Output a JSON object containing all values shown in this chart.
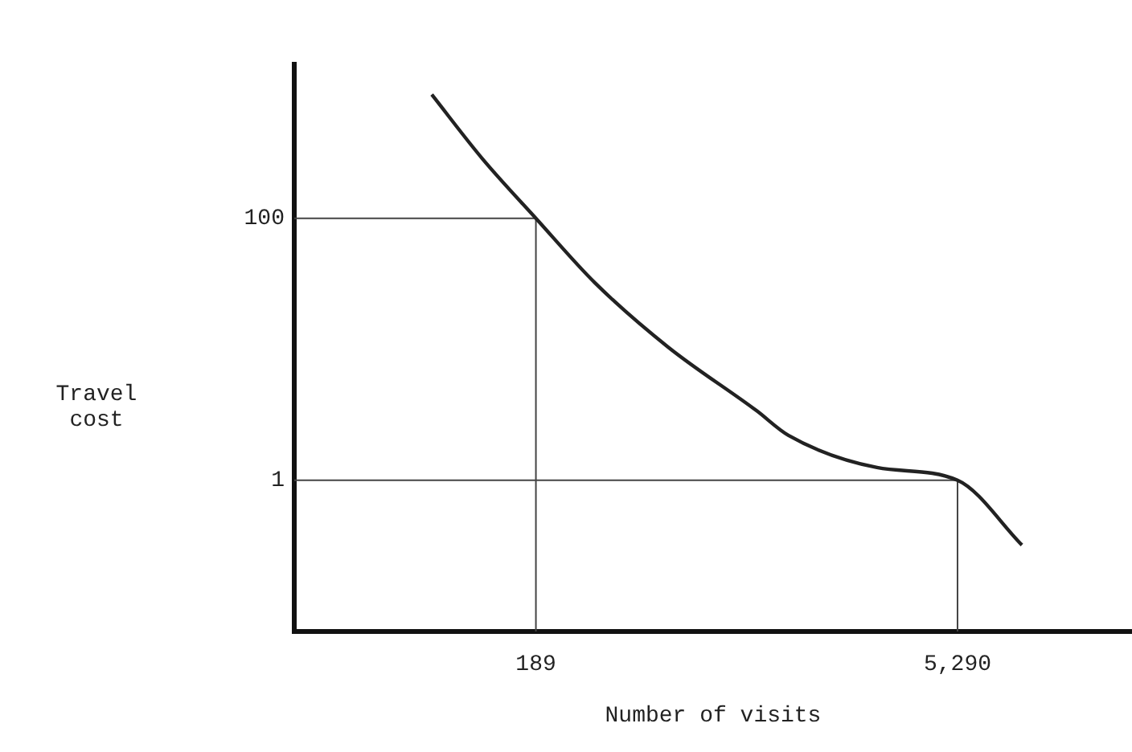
{
  "chart_data": {
    "type": "line",
    "xlabel": "Number of visits",
    "ylabel": "Travel cost",
    "log": "xy",
    "marker": "none",
    "xlim": [
      28,
      21000
    ],
    "ylim": [
      0.07,
      1500
    ],
    "xticks": [
      189,
      {
        "value": 5290,
        "label": "5,290"
      }
    ],
    "yticks": [
      1,
      100
    ],
    "series": [
      {
        "color": "#222222",
        "x": [
          83,
          124,
          189,
          302,
          537,
          1080,
          1390,
          2800,
          5290,
          8800
        ],
        "values": [
          881,
          284,
          100,
          32,
          10.4,
          3.4,
          2.2,
          1.25,
          1,
          0.32
        ]
      },
      {
        "color": "#444444",
        "x": [
          28,
          189,
          189
        ],
        "values": [
          100,
          100,
          0.07
        ]
      },
      {
        "color": "#444444",
        "x": [
          28,
          5290,
          5290
        ],
        "values": [
          1,
          1,
          0.07
        ]
      }
    ]
  }
}
